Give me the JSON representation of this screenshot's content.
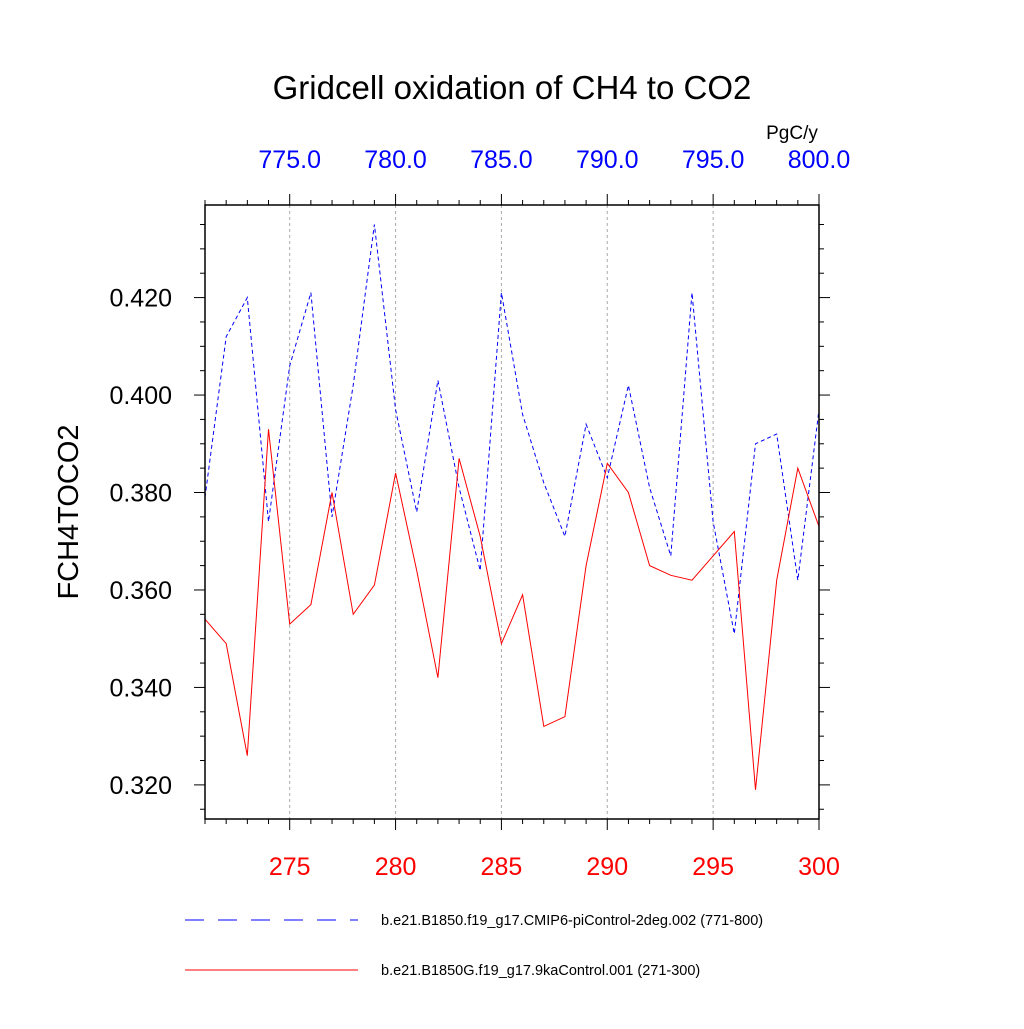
{
  "chart_data": {
    "type": "line",
    "title": "Gridcell oxidation of CH4 to CO2",
    "ylabel": "FCH4TOCO2",
    "units": "PgC/y",
    "ylim": [
      0.313,
      0.439
    ],
    "yticks": [
      "0.320",
      "0.340",
      "0.360",
      "0.380",
      "0.400",
      "0.420"
    ],
    "grid": "vertical dashed gridlines at labeled bottom-axis ticks",
    "x_bottom": {
      "range": [
        271,
        300
      ],
      "ticks": [
        "275",
        "280",
        "285",
        "290",
        "295",
        "300"
      ],
      "color": "#ff0000"
    },
    "x_top": {
      "range": [
        771,
        800
      ],
      "ticks": [
        "775.0",
        "780.0",
        "785.0",
        "790.0",
        "795.0",
        "800.0"
      ],
      "color": "#0000ff"
    },
    "series": [
      {
        "name": "b.e21.B1850.f19_g17.CMIP6-piControl-2deg.002 (771-800)",
        "color": "#0000ff",
        "dash": "dashed",
        "axis": "top",
        "x": [
          771,
          772,
          773,
          774,
          775,
          776,
          777,
          778,
          779,
          780,
          781,
          782,
          783,
          784,
          785,
          786,
          787,
          788,
          789,
          790,
          791,
          792,
          793,
          794,
          795,
          796,
          797,
          798,
          799,
          800
        ],
        "values": [
          0.379,
          0.412,
          0.42,
          0.374,
          0.406,
          0.421,
          0.375,
          0.402,
          0.435,
          0.397,
          0.376,
          0.403,
          0.381,
          0.364,
          0.421,
          0.396,
          0.382,
          0.371,
          0.394,
          0.383,
          0.402,
          0.381,
          0.367,
          0.421,
          0.374,
          0.351,
          0.39,
          0.392,
          0.362,
          0.397
        ]
      },
      {
        "name": "b.e21.B1850G.f19_g17.9kaControl.001 (271-300)",
        "color": "#ff0000",
        "dash": "solid",
        "axis": "bottom",
        "x": [
          271,
          272,
          273,
          274,
          275,
          276,
          277,
          278,
          279,
          280,
          281,
          282,
          283,
          284,
          285,
          286,
          287,
          288,
          289,
          290,
          291,
          292,
          293,
          294,
          295,
          296,
          297,
          298,
          299,
          300
        ],
        "values": [
          0.354,
          0.349,
          0.326,
          0.393,
          0.353,
          0.357,
          0.38,
          0.355,
          0.361,
          0.384,
          0.364,
          0.342,
          0.387,
          0.371,
          0.349,
          0.359,
          0.332,
          0.334,
          0.365,
          0.386,
          0.38,
          0.365,
          0.363,
          0.362,
          0.367,
          0.372,
          0.319,
          0.362,
          0.385,
          0.373
        ]
      }
    ]
  }
}
